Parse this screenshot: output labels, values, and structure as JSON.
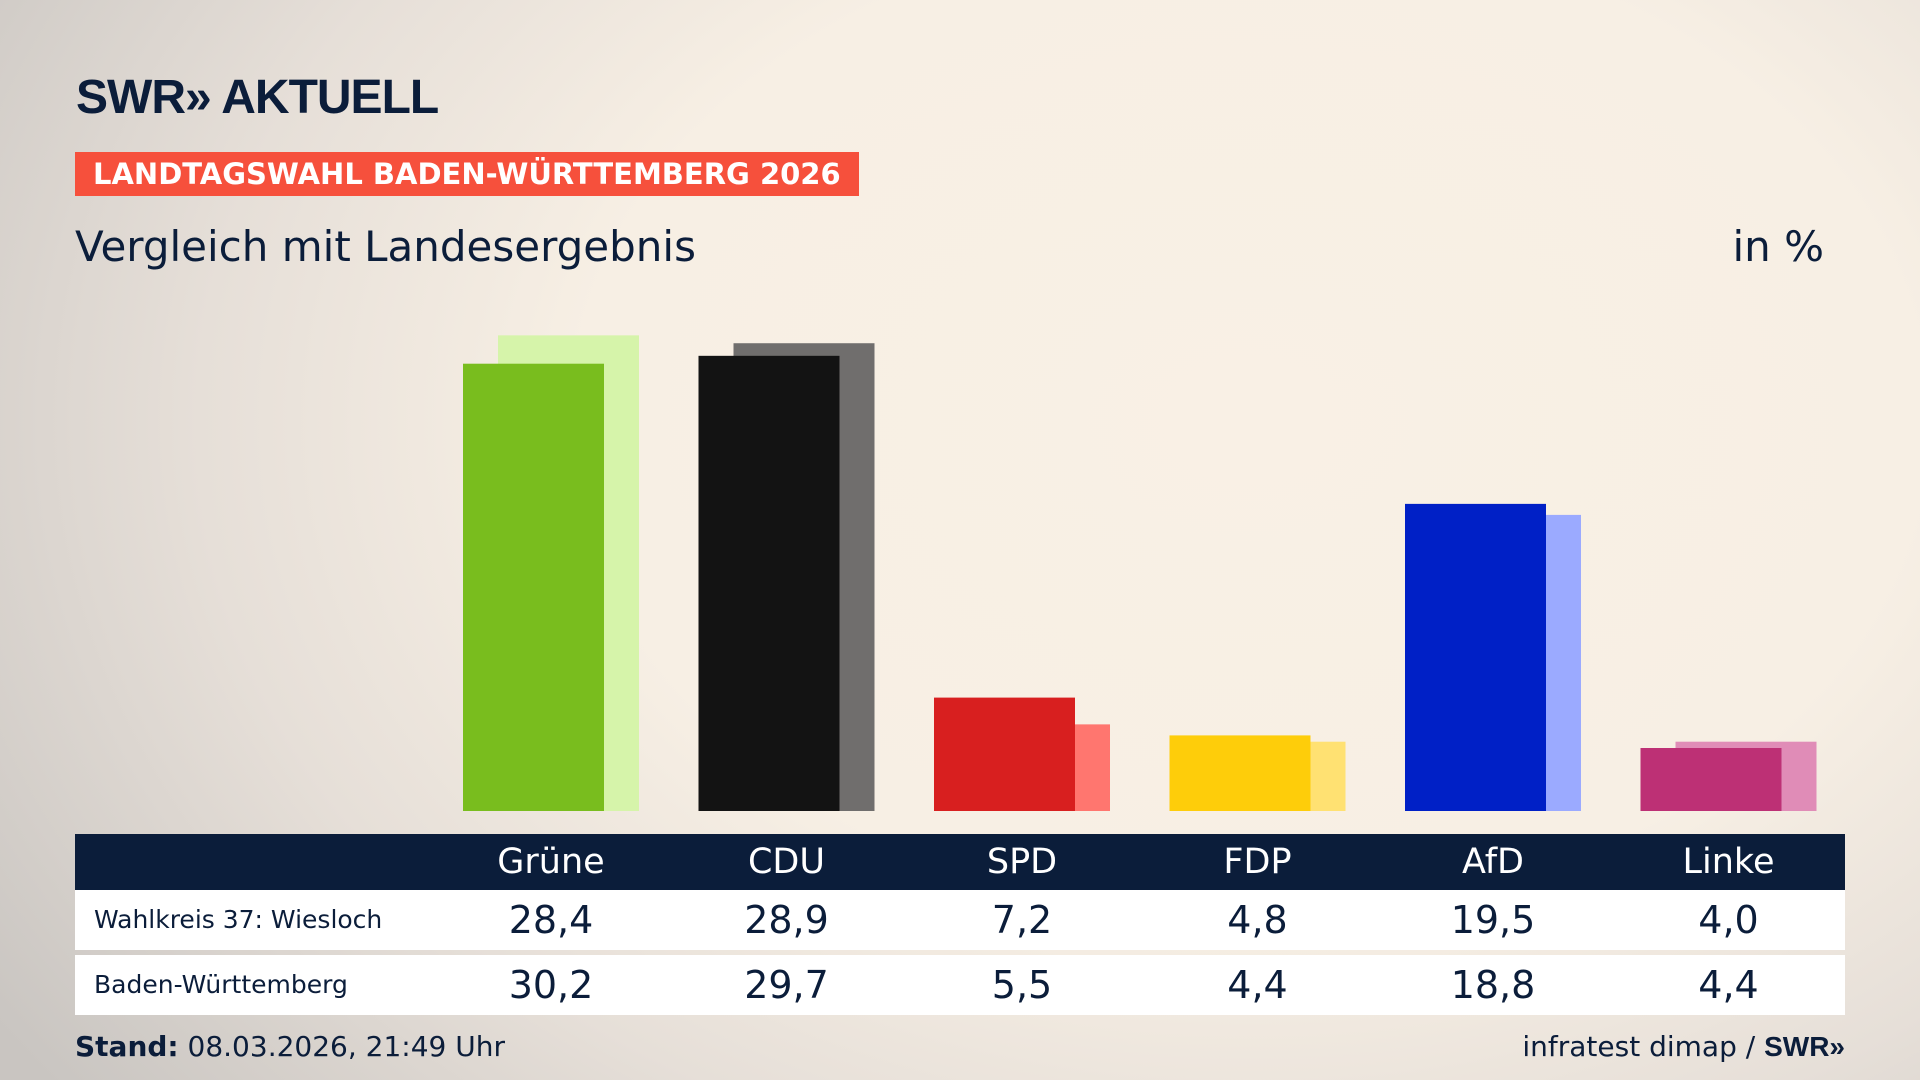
{
  "header": {
    "logo": "SWR» AKTUELL",
    "banner": "LANDTAGSWAHL BADEN-WÜRTTEMBERG 2026",
    "subtitle": "Vergleich mit Landesergebnis",
    "unit": "in %"
  },
  "chart_data": {
    "type": "bar",
    "categories": [
      "Grüne",
      "CDU",
      "SPD",
      "FDP",
      "AfD",
      "Linke"
    ],
    "series": [
      {
        "name": "Wahlkreis 37: Wiesloch",
        "values": [
          28.4,
          28.9,
          7.2,
          4.8,
          19.5,
          4.0
        ],
        "colors": [
          "#79bd1e",
          "#131313",
          "#d81f1f",
          "#fecd0a",
          "#0020c6",
          "#bd3075"
        ]
      },
      {
        "name": "Baden-Württemberg",
        "values": [
          30.2,
          29.7,
          5.5,
          4.4,
          18.8,
          4.4
        ],
        "colors": [
          "#d6f4aa",
          "#706e6d",
          "#ff766f",
          "#ffe172",
          "#9baaff",
          "#e08cb7"
        ]
      }
    ],
    "ylim": [
      0,
      31
    ]
  },
  "table": {
    "headers": [
      "Grüne",
      "CDU",
      "SPD",
      "FDP",
      "AfD",
      "Linke"
    ],
    "rows": [
      {
        "label": "Wahlkreis 37: Wiesloch",
        "values": [
          "28,4",
          "28,9",
          "7,2",
          "4,8",
          "19,5",
          "4,0"
        ]
      },
      {
        "label": "Baden-Württemberg",
        "values": [
          "30,2",
          "29,7",
          "5,5",
          "4,4",
          "18,8",
          "4,4"
        ]
      }
    ]
  },
  "footer": {
    "stand_label": "Stand:",
    "stand_value": "08.03.2026, 21:49 Uhr",
    "source": "infratest dimap /",
    "source_logo": "SWR»"
  }
}
